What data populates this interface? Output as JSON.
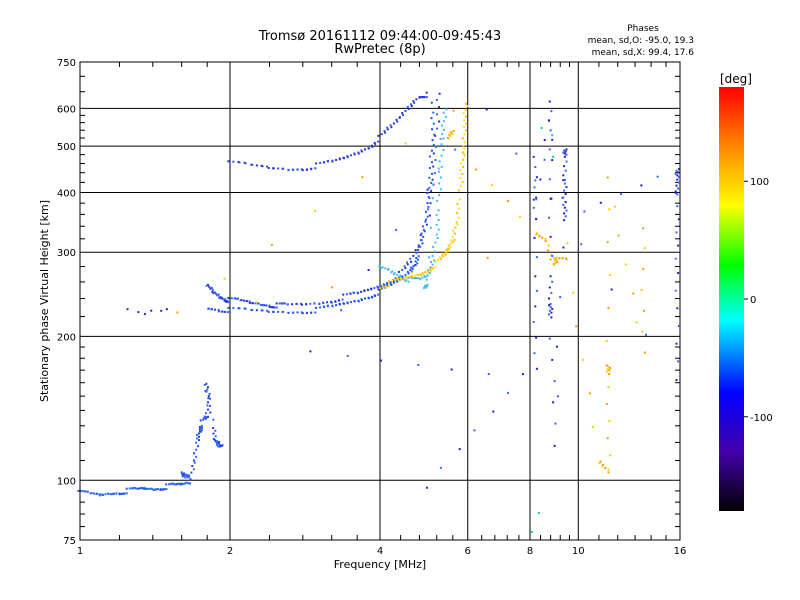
{
  "chart_data": {
    "type": "scatter",
    "title": "Tromsø 20161112 09:44:00-09:45:43",
    "subtitle": "RwPretec (8p)",
    "xlabel": "Frequency [MHz]",
    "ylabel": "Stationary phase Virtual Height [km]",
    "x_scale": "log2",
    "y_scale": "log",
    "xlim": [
      1,
      16
    ],
    "ylim": [
      75,
      750
    ],
    "x_ticks": [
      1,
      2,
      4,
      6,
      8,
      10,
      16
    ],
    "y_ticks": [
      75,
      100,
      200,
      300,
      400,
      500,
      600,
      750
    ],
    "grid": true,
    "stats": {
      "heading": "Phases",
      "o_line": "mean, sd,O: -95.0, 19.3",
      "x_line": "mean, sd,X:  99.4, 17.6"
    },
    "colorbar": {
      "label": "[deg]",
      "range": [
        -180,
        180
      ],
      "ticks": [
        100,
        0,
        -100
      ],
      "colors": [
        "#ff0000",
        "#ff8800",
        "#ffff00",
        "#00ff00",
        "#00ffff",
        "#0000ff",
        "#4400aa",
        "#000000"
      ]
    },
    "series": [
      {
        "color": "#2255ee",
        "color_alt": "#3377ff",
        "points": [
          [
            1.0,
            94
          ],
          [
            1.05,
            93.5
          ],
          [
            1.1,
            93
          ],
          [
            1.15,
            94
          ],
          [
            1.2,
            94.5
          ],
          [
            1.25,
            95
          ],
          [
            1.3,
            95.5
          ],
          [
            1.35,
            96
          ],
          [
            1.4,
            96
          ],
          [
            1.45,
            96.5
          ],
          [
            1.5,
            97
          ],
          [
            1.55,
            97.5
          ],
          [
            1.6,
            98
          ],
          [
            1.65,
            99
          ]
        ]
      },
      {
        "color": "#3322cc",
        "color_alt": "#4466ff",
        "points": [
          [
            1.25,
            228
          ],
          [
            1.3,
            226
          ],
          [
            1.35,
            225
          ],
          [
            1.4,
            224
          ],
          [
            1.45,
            225
          ],
          [
            1.5,
            228
          ]
        ]
      },
      {
        "color": "#2244dd",
        "color_alt": "#3366ff",
        "points": [
          [
            1.6,
            105
          ],
          [
            1.63,
            102
          ],
          [
            1.66,
            100
          ],
          [
            1.7,
            110
          ],
          [
            1.72,
            122
          ],
          [
            1.74,
            128
          ],
          [
            1.76,
            132
          ],
          [
            1.8,
            135
          ],
          [
            1.82,
            150
          ],
          [
            1.78,
            160
          ],
          [
            1.85,
            130
          ],
          [
            1.88,
            120
          ],
          [
            1.9,
            117
          ],
          [
            1.93,
            118
          ]
        ]
      },
      {
        "color": "#2233cc",
        "color_alt": "#3366ff",
        "points": [
          [
            1.8,
            255
          ],
          [
            1.85,
            248
          ],
          [
            1.9,
            243
          ],
          [
            1.95,
            240
          ],
          [
            2.0,
            238
          ],
          [
            2.1,
            237
          ],
          [
            2.2,
            235
          ],
          [
            2.3,
            234
          ],
          [
            2.4,
            233
          ],
          [
            2.5,
            232
          ],
          [
            2.6,
            232
          ],
          [
            2.8,
            233
          ],
          [
            3.0,
            235
          ],
          [
            3.2,
            238
          ],
          [
            3.4,
            242
          ],
          [
            3.6,
            245
          ],
          [
            3.8,
            250
          ],
          [
            4.0,
            255
          ],
          [
            4.2,
            262
          ],
          [
            4.4,
            270
          ],
          [
            4.6,
            285
          ],
          [
            4.8,
            310
          ],
          [
            5.0,
            360
          ],
          [
            5.1,
            430
          ],
          [
            5.2,
            520
          ],
          [
            5.25,
            640
          ]
        ]
      },
      {
        "color": "#1f4de0",
        "color_alt": "#2b5fff",
        "points": [
          [
            1.8,
            230
          ],
          [
            1.9,
            228
          ],
          [
            2.0,
            227
          ],
          [
            2.2,
            226
          ],
          [
            2.4,
            225
          ],
          [
            2.6,
            225
          ],
          [
            2.8,
            226
          ],
          [
            3.0,
            227
          ],
          [
            3.2,
            230
          ],
          [
            3.4,
            234
          ],
          [
            3.6,
            238
          ],
          [
            3.8,
            243
          ],
          [
            4.0,
            248
          ],
          [
            4.2,
            255
          ],
          [
            4.4,
            263
          ],
          [
            4.6,
            275
          ],
          [
            4.7,
            285
          ],
          [
            4.8,
            300
          ],
          [
            4.9,
            330
          ],
          [
            5.0,
            380
          ],
          [
            5.05,
            440
          ],
          [
            5.1,
            520
          ],
          [
            5.12,
            610
          ]
        ]
      },
      {
        "color": "#2233cc",
        "color_alt": "#3355ee",
        "points": [
          [
            2.0,
            460
          ],
          [
            2.2,
            455
          ],
          [
            2.4,
            450
          ],
          [
            2.6,
            448
          ],
          [
            2.8,
            450
          ],
          [
            3.0,
            455
          ],
          [
            3.2,
            462
          ],
          [
            3.4,
            472
          ],
          [
            3.6,
            485
          ],
          [
            3.8,
            500
          ],
          [
            4.0,
            520
          ],
          [
            4.2,
            545
          ],
          [
            4.4,
            575
          ],
          [
            4.6,
            610
          ],
          [
            4.8,
            640
          ],
          [
            5.0,
            640
          ]
        ]
      },
      {
        "color": "#33ccee",
        "color_alt": "#55aaff",
        "points": [
          [
            4.0,
            280
          ],
          [
            4.2,
            275
          ],
          [
            4.4,
            268
          ],
          [
            4.6,
            262
          ],
          [
            4.8,
            262
          ],
          [
            5.0,
            268
          ],
          [
            5.1,
            290
          ],
          [
            5.2,
            330
          ],
          [
            5.25,
            380
          ],
          [
            5.3,
            450
          ],
          [
            5.35,
            530
          ],
          [
            5.4,
            600
          ],
          [
            4.9,
            255
          ],
          [
            5.0,
            260
          ]
        ]
      },
      {
        "color": "#ffbb00",
        "color_alt": "#ffdd22",
        "points": [
          [
            4.0,
            255
          ],
          [
            4.2,
            258
          ],
          [
            4.4,
            262
          ],
          [
            4.6,
            266
          ],
          [
            4.8,
            270
          ],
          [
            5.0,
            276
          ],
          [
            5.2,
            284
          ],
          [
            5.4,
            295
          ],
          [
            5.5,
            305
          ],
          [
            5.6,
            320
          ],
          [
            5.7,
            350
          ],
          [
            5.8,
            400
          ],
          [
            5.85,
            450
          ],
          [
            5.9,
            500
          ],
          [
            5.92,
            560
          ],
          [
            5.95,
            620
          ]
        ]
      },
      {
        "color": "#ff9900",
        "color_alt": "#ffcc00",
        "points": [
          [
            5.6,
            535
          ],
          [
            5.5,
            520
          ],
          [
            8.2,
            330
          ],
          [
            8.6,
            320
          ],
          [
            9.0,
            280
          ],
          [
            9.0,
            290
          ],
          [
            9.5,
            290
          ],
          [
            11.0,
            110
          ],
          [
            11.5,
            105
          ],
          [
            11.5,
            172
          ],
          [
            11.5,
            166
          ],
          [
            11.5,
            430
          ],
          [
            13.5,
            186
          ],
          [
            13.5,
            340
          ],
          [
            1.58,
            222
          ],
          [
            5.6,
            590
          ]
        ]
      },
      {
        "color": "#2222cc",
        "color_alt": "#3366ff",
        "points": [
          [
            8.2,
            172
          ],
          [
            8.2,
            270
          ],
          [
            8.2,
            470
          ],
          [
            8.2,
            350
          ],
          [
            8.8,
            620
          ],
          [
            8.8,
            470
          ],
          [
            8.8,
            270
          ],
          [
            8.8,
            230
          ],
          [
            8.8,
            218
          ],
          [
            9.0,
            118
          ],
          [
            9.4,
            495
          ],
          [
            9.4,
            480
          ],
          [
            9.4,
            420
          ],
          [
            9.4,
            380
          ],
          [
            9.4,
            350
          ],
          [
            15.8,
            450
          ],
          [
            15.8,
            430
          ],
          [
            15.8,
            395
          ],
          [
            15.8,
            270
          ],
          [
            15.8,
            162
          ],
          [
            6.5,
            600
          ],
          [
            2.9,
            188
          ],
          [
            7.8,
            165
          ],
          [
            4.95,
            96
          ]
        ]
      },
      {
        "color": "#00cccc",
        "color_alt": "#33ddff",
        "points": [
          [
            8.5,
            540
          ],
          [
            8.3,
            85
          ],
          [
            8.1,
            78
          ],
          [
            8.8,
            530
          ],
          [
            8.9,
            480
          ]
        ]
      }
    ]
  }
}
